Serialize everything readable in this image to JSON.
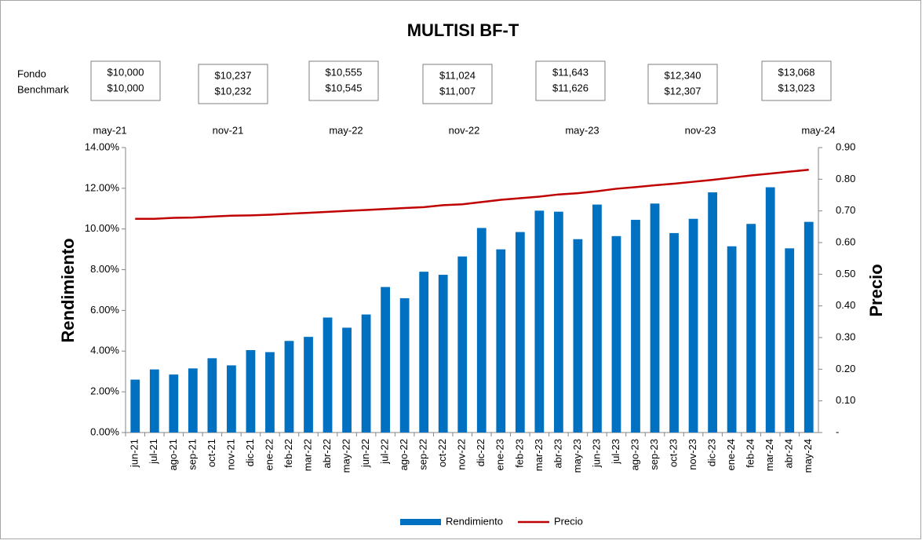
{
  "chart_data": {
    "type": "bar_line",
    "title": "MULTISI BF-T",
    "row_labels": [
      "Fondo",
      "Benchmark"
    ],
    "top_axis_labels": [
      "may-21",
      "nov-21",
      "may-22",
      "nov-22",
      "may-23",
      "nov-23",
      "may-24"
    ],
    "boxes": [
      {
        "fondo": "$10,000",
        "benchmark": "$10,000"
      },
      {
        "fondo": "$10,237",
        "benchmark": "$10,232"
      },
      {
        "fondo": "$10,555",
        "benchmark": "$10,545"
      },
      {
        "fondo": "$11,024",
        "benchmark": "$11,007"
      },
      {
        "fondo": "$11,643",
        "benchmark": "$11,626"
      },
      {
        "fondo": "$12,340",
        "benchmark": "$12,307"
      },
      {
        "fondo": "$13,068",
        "benchmark": "$13,023"
      }
    ],
    "y_label": "Rendimiento",
    "y2_label": "Precio",
    "categories": [
      "jun-21",
      "jul-21",
      "ago-21",
      "sep-21",
      "oct-21",
      "nov-21",
      "dic-21",
      "ene-22",
      "feb-22",
      "mar-22",
      "abr-22",
      "may-22",
      "jun-22",
      "jul-22",
      "ago-22",
      "sep-22",
      "oct-22",
      "nov-22",
      "dic-22",
      "ene-23",
      "feb-23",
      "mar-23",
      "abr-23",
      "may-23",
      "jun-23",
      "jul-23",
      "ago-23",
      "sep-23",
      "oct-23",
      "nov-23",
      "dic-23",
      "ene-24",
      "feb-24",
      "mar-24",
      "abr-24",
      "may-24"
    ],
    "series": [
      {
        "name": "Rendimiento",
        "color": "#0070c0",
        "axis": "y",
        "values": [
          2.6,
          3.1,
          2.85,
          3.15,
          3.65,
          3.3,
          4.05,
          3.95,
          4.5,
          4.7,
          5.65,
          5.15,
          5.8,
          7.15,
          6.6,
          7.9,
          7.75,
          8.65,
          10.05,
          9.0,
          9.85,
          10.9,
          10.85,
          9.5,
          11.2,
          9.65,
          10.45,
          11.25,
          9.8,
          10.5,
          11.8,
          9.15,
          10.25,
          12.05,
          9.05,
          10.35
        ]
      },
      {
        "name": "Precio",
        "color": "#c00000",
        "axis": "y2",
        "values": [
          0.675,
          0.675,
          0.678,
          0.679,
          0.682,
          0.685,
          0.686,
          0.688,
          0.691,
          0.694,
          0.697,
          0.7,
          0.703,
          0.706,
          0.709,
          0.712,
          0.718,
          0.721,
          0.728,
          0.735,
          0.74,
          0.745,
          0.752,
          0.756,
          0.762,
          0.77,
          0.775,
          0.781,
          0.786,
          0.792,
          0.798,
          0.805,
          0.812,
          0.818,
          0.824,
          0.83
        ]
      }
    ],
    "ylim": [
      0,
      14
    ],
    "yticks": [
      {
        "value": 0,
        "label": "0.00%"
      },
      {
        "value": 2,
        "label": "2.00%"
      },
      {
        "value": 4,
        "label": "4.00%"
      },
      {
        "value": 6,
        "label": "6.00%"
      },
      {
        "value": 8,
        "label": "8.00%"
      },
      {
        "value": 10,
        "label": "10.00%"
      },
      {
        "value": 12,
        "label": "12.00%"
      },
      {
        "value": 14,
        "label": "14.00%"
      }
    ],
    "y2lim": [
      0,
      0.9
    ],
    "y2ticks": [
      {
        "value": 0,
        "label": "-"
      },
      {
        "value": 0.1,
        "label": "0.10"
      },
      {
        "value": 0.2,
        "label": "0.20"
      },
      {
        "value": 0.3,
        "label": "0.30"
      },
      {
        "value": 0.4,
        "label": "0.40"
      },
      {
        "value": 0.5,
        "label": "0.50"
      },
      {
        "value": 0.6,
        "label": "0.60"
      },
      {
        "value": 0.7,
        "label": "0.70"
      },
      {
        "value": 0.8,
        "label": "0.80"
      },
      {
        "value": 0.9,
        "label": "0.90"
      }
    ],
    "legend": "bottom"
  }
}
